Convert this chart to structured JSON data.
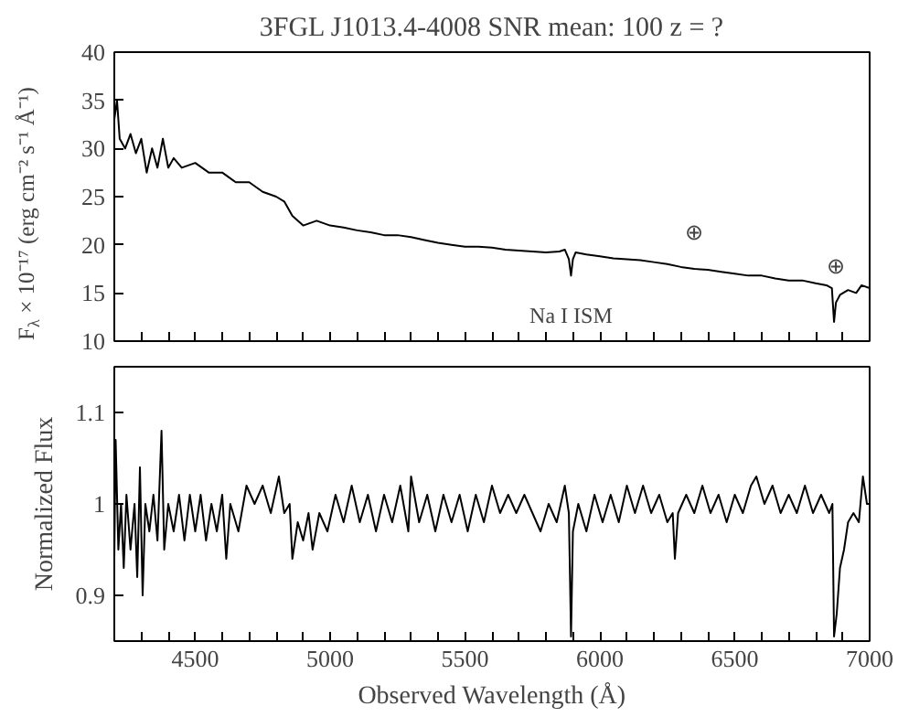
{
  "chart_data": [
    {
      "type": "line",
      "title": "3FGL J1013.4-4008 SNR mean: 100 z = ?",
      "ylabel": "F$_{λ}$ × 10⁻¹⁷ (erg cm⁻² s⁻¹ Å⁻¹)",
      "color": "#000000",
      "x": [
        4200,
        4210,
        4220,
        4240,
        4260,
        4280,
        4300,
        4320,
        4340,
        4360,
        4380,
        4400,
        4420,
        4450,
        4500,
        4550,
        4600,
        4650,
        4700,
        4750,
        4800,
        4830,
        4860,
        4880,
        4900,
        4950,
        5000,
        5050,
        5100,
        5150,
        5200,
        5250,
        5300,
        5350,
        5400,
        5450,
        5500,
        5550,
        5600,
        5650,
        5700,
        5750,
        5800,
        5850,
        5870,
        5885,
        5893,
        5900,
        5910,
        5950,
        6000,
        6050,
        6100,
        6150,
        6200,
        6250,
        6300,
        6350,
        6400,
        6450,
        6500,
        6550,
        6600,
        6650,
        6700,
        6750,
        6800,
        6840,
        6860,
        6868,
        6875,
        6890,
        6920,
        6950,
        6970,
        7000
      ],
      "values": [
        33,
        35,
        31,
        30,
        31.5,
        29.5,
        31,
        27.5,
        30,
        28,
        31,
        28,
        29,
        28,
        28.5,
        27.5,
        27.5,
        26.5,
        26.5,
        25.5,
        25,
        24.5,
        23,
        22.5,
        22,
        22.5,
        22,
        21.8,
        21.5,
        21.3,
        21,
        21,
        20.8,
        20.5,
        20.2,
        20,
        19.8,
        19.8,
        19.7,
        19.5,
        19.4,
        19.3,
        19.2,
        19.3,
        19.5,
        18.5,
        16.8,
        18.5,
        19.2,
        19,
        18.8,
        18.6,
        18.5,
        18.4,
        18.2,
        18,
        17.7,
        17.5,
        17.4,
        17.2,
        17,
        16.8,
        16.8,
        16.5,
        16.3,
        16.3,
        16,
        15.8,
        15.5,
        12,
        14,
        14.8,
        15.3,
        15,
        15.8,
        15.5
      ],
      "xlim": [
        4200,
        7000
      ],
      "ylim": [
        10,
        40
      ],
      "yticks": [
        10,
        15,
        20,
        25,
        30,
        35,
        40
      ],
      "xticks": [
        {
          "value": 4300,
          "label": null
        },
        {
          "value": 4400,
          "label": null
        },
        4500,
        {
          "value": 4600,
          "label": null
        },
        {
          "value": 4700,
          "label": null
        },
        {
          "value": 4800,
          "label": null
        },
        {
          "value": 4900,
          "label": null
        },
        5000,
        {
          "value": 5100,
          "label": null
        },
        {
          "value": 5200,
          "label": null
        },
        {
          "value": 5300,
          "label": null
        },
        {
          "value": 5400,
          "label": null
        },
        5500,
        {
          "value": 5600,
          "label": null
        },
        {
          "value": 5700,
          "label": null
        },
        {
          "value": 5800,
          "label": null
        },
        {
          "value": 5900,
          "label": null
        },
        6000,
        {
          "value": 6100,
          "label": null
        },
        {
          "value": 6200,
          "label": null
        },
        {
          "value": 6300,
          "label": null
        },
        {
          "value": 6400,
          "label": null
        },
        6500,
        {
          "value": 6600,
          "label": null
        },
        {
          "value": 6700,
          "label": null
        },
        {
          "value": 6800,
          "label": null
        },
        {
          "value": 6900,
          "label": null
        },
        7000
      ],
      "tick_labels": "y",
      "annotations": [
        {
          "text": "Na I ISM",
          "x": 5893,
          "y": 16.8
        },
        {
          "text": "⊕",
          "x": 6350,
          "y": 17.5
        },
        {
          "text": "⊕",
          "x": 6875,
          "y": 14
        }
      ]
    },
    {
      "type": "line",
      "xlabel": "Observed Wavelength (Å)",
      "ylabel": "Normalized Flux",
      "color": "#000000",
      "x": [
        4200,
        4205,
        4215,
        4225,
        4235,
        4245,
        4260,
        4275,
        4285,
        4295,
        4305,
        4315,
        4330,
        4345,
        4360,
        4375,
        4385,
        4400,
        4420,
        4440,
        4460,
        4480,
        4500,
        4520,
        4540,
        4560,
        4580,
        4600,
        4615,
        4630,
        4660,
        4690,
        4720,
        4750,
        4780,
        4810,
        4830,
        4850,
        4860,
        4880,
        4900,
        4920,
        4935,
        4960,
        4990,
        5020,
        5050,
        5080,
        5110,
        5140,
        5170,
        5200,
        5230,
        5260,
        5290,
        5300,
        5330,
        5360,
        5390,
        5420,
        5450,
        5480,
        5510,
        5540,
        5570,
        5600,
        5630,
        5660,
        5690,
        5720,
        5750,
        5780,
        5810,
        5840,
        5870,
        5885,
        5893,
        5900,
        5920,
        5950,
        5980,
        6010,
        6040,
        6070,
        6100,
        6130,
        6160,
        6190,
        6220,
        6250,
        6270,
        6278,
        6290,
        6320,
        6350,
        6380,
        6410,
        6440,
        6470,
        6500,
        6530,
        6560,
        6580,
        6610,
        6640,
        6670,
        6700,
        6730,
        6760,
        6790,
        6820,
        6850,
        6862,
        6868,
        6878,
        6890,
        6905,
        6920,
        6940,
        6960,
        6975,
        6990,
        7000
      ],
      "values": [
        0.94,
        1.07,
        0.95,
        1.0,
        0.93,
        1.01,
        0.95,
        1.0,
        0.92,
        1.04,
        0.9,
        1.0,
        0.97,
        1.01,
        0.96,
        1.08,
        0.95,
        1.0,
        0.97,
        1.01,
        0.96,
        1.01,
        0.97,
        1.01,
        0.96,
        1.0,
        0.97,
        1.01,
        0.94,
        1.0,
        0.97,
        1.02,
        1.0,
        1.02,
        0.99,
        1.03,
        0.99,
        1.0,
        0.94,
        0.98,
        0.96,
        0.99,
        0.95,
        0.99,
        0.97,
        1.01,
        0.98,
        1.02,
        0.98,
        1.01,
        0.97,
        1.01,
        0.98,
        1.02,
        0.97,
        1.03,
        0.98,
        1.01,
        0.97,
        1.01,
        0.98,
        1.01,
        0.97,
        1.01,
        0.98,
        1.02,
        0.99,
        1.01,
        0.99,
        1.01,
        0.99,
        0.97,
        1.0,
        0.98,
        1.02,
        0.99,
        0.855,
        0.97,
        1.0,
        0.97,
        1.01,
        0.98,
        1.01,
        0.98,
        1.02,
        0.99,
        1.02,
        0.99,
        1.01,
        0.98,
        0.99,
        0.94,
        0.99,
        1.01,
        0.99,
        1.02,
        0.99,
        1.01,
        0.98,
        1.01,
        0.99,
        1.02,
        1.03,
        1.0,
        1.02,
        0.99,
        1.01,
        0.99,
        1.02,
        0.99,
        1.01,
        0.99,
        1.0,
        0.855,
        0.88,
        0.93,
        0.95,
        0.98,
        0.99,
        0.98,
        1.03,
        1.0,
        1.0
      ],
      "xlim": [
        4200,
        7000
      ],
      "ylim": [
        0.85,
        1.15
      ],
      "yticks": [
        0.9,
        1,
        1.1
      ],
      "xticks": [
        {
          "value": 4300,
          "label": null
        },
        {
          "value": 4400,
          "label": null
        },
        4500,
        {
          "value": 4600,
          "label": null
        },
        {
          "value": 4700,
          "label": null
        },
        {
          "value": 4800,
          "label": null
        },
        {
          "value": 4900,
          "label": null
        },
        5000,
        {
          "value": 5100,
          "label": null
        },
        {
          "value": 5200,
          "label": null
        },
        {
          "value": 5300,
          "label": null
        },
        {
          "value": 5400,
          "label": null
        },
        5500,
        {
          "value": 5600,
          "label": null
        },
        {
          "value": 5700,
          "label": null
        },
        {
          "value": 5800,
          "label": null
        },
        {
          "value": 5900,
          "label": null
        },
        6000,
        {
          "value": 6100,
          "label": null
        },
        {
          "value": 6200,
          "label": null
        },
        {
          "value": 6300,
          "label": null
        },
        {
          "value": 6400,
          "label": null
        },
        6500,
        {
          "value": 6600,
          "label": null
        },
        {
          "value": 6700,
          "label": null
        },
        {
          "value": 6800,
          "label": null
        },
        {
          "value": 6900,
          "label": null
        },
        7000
      ]
    }
  ]
}
